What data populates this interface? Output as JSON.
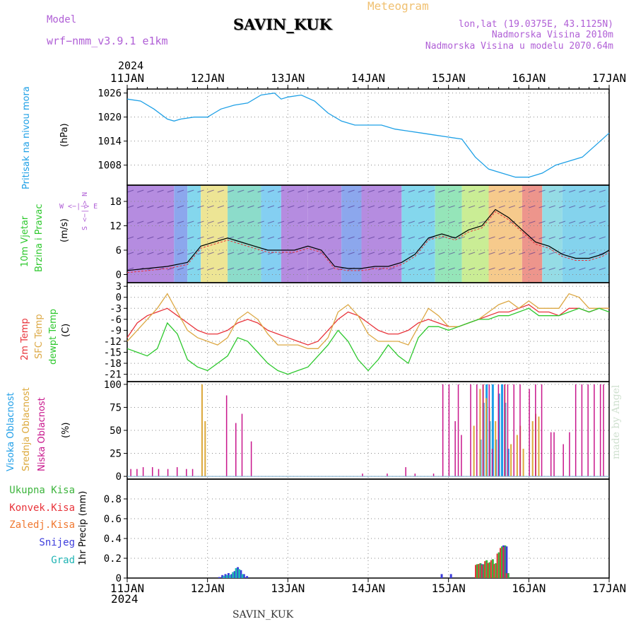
{
  "header": {
    "model_label": "Model",
    "model_name": "wrf−nmm_v3.9.1  e1km",
    "station": "SAVIN_KUK",
    "product": "Meteogram",
    "lonlat": "lon,lat (19.0375E, 43.1125N)",
    "elevation": "Nadmorska Visina 2010m",
    "elevation_model": "Nadmorska Visina u modelu 2070.64m",
    "year": "2024",
    "footer_station": "SAVIN_KUK",
    "credit": "made by Angel"
  },
  "time_axis": {
    "labels": [
      "11JAN",
      "12JAN",
      "13JAN",
      "14JAN",
      "15JAN",
      "16JAN",
      "17JAN"
    ],
    "year": "2024"
  },
  "colors": {
    "pressure": "#1ea0e6",
    "temp2m": "#e8333a",
    "sfc_temp": "#dca844",
    "dewpoint": "#2dc82d",
    "cloud_high": "#1e9ee8",
    "cloud_mid": "#dca83a",
    "cloud_low": "#c8168c",
    "precip_total": "#3cb43c",
    "precip_conv": "#e8333a",
    "precip_frozen": "#f07830",
    "snow": "#3c3cdc",
    "graupel": "#20b4b4",
    "side_purple": "#b05fd6"
  },
  "panels": {
    "pressure": {
      "label": "Pritisak na nivou mora",
      "unit": "(hPa)"
    },
    "wind": {
      "label1": "10m Vjetar",
      "label2": "Brzina i Pravac",
      "unit": "(m/s)",
      "compass": "W <−|−> E",
      "compass_v": "S <−|−> N"
    },
    "temp": {
      "label1": "2m Temp",
      "label2": "SFC Temp",
      "label3": "dewpt Temp",
      "unit": "(C)"
    },
    "cloud": {
      "label1": "Visoka Oblacnost",
      "label2": "Srednja Oblacnost",
      "label3": "Niska Oblacnost",
      "unit": "(%)"
    },
    "precip": {
      "legend": [
        "Ukupna Kisa",
        "Konvek.Kisa",
        "Zaledj.Kisa",
        "Snijeg",
        "Grad"
      ],
      "unit": "1hr Precip (mm)"
    }
  },
  "chart_data": [
    {
      "type": "line",
      "title": "Pritisak na nivou mora",
      "ylabel": "(hPa)",
      "ylim": [
        1003,
        1027
      ],
      "yticks": [
        1008,
        1014,
        1020,
        1026
      ],
      "x_hours": [
        0,
        4,
        8,
        12,
        14,
        16,
        20,
        24,
        26,
        28,
        32,
        36,
        40,
        44,
        46,
        48,
        52,
        56,
        60,
        64,
        68,
        72,
        76,
        80,
        84,
        88,
        92,
        96,
        100,
        104,
        108,
        112,
        116,
        120,
        124,
        128,
        132,
        136,
        140,
        144
      ],
      "series": [
        {
          "values": [
            1024.5,
            1024,
            1022,
            1019.5,
            1019,
            1019.5,
            1020,
            1020,
            1021,
            1022,
            1023,
            1023.5,
            1025.5,
            1026,
            1024.5,
            1025,
            1025.5,
            1024,
            1021,
            1019,
            1018,
            1018,
            1018,
            1017,
            1016.5,
            1016,
            1015.5,
            1015,
            1014.5,
            1010,
            1007,
            1006,
            1005,
            1005,
            1006,
            1008,
            1009,
            1010,
            1013,
            1016
          ]
        }
      ],
      "grid": true
    },
    {
      "type": "line",
      "title": "10m Vjetar Brzina i Pravac",
      "ylabel": "(m/s)",
      "ylim": [
        -2,
        22
      ],
      "yticks": [
        0,
        6,
        12,
        18
      ],
      "x_hours": [
        0,
        6,
        12,
        18,
        22,
        26,
        30,
        34,
        38,
        42,
        46,
        50,
        54,
        58,
        62,
        66,
        70,
        74,
        78,
        82,
        86,
        90,
        94,
        98,
        102,
        106,
        110,
        114,
        118,
        122,
        126,
        130,
        134,
        138,
        142,
        144
      ],
      "series": [
        {
          "values": [
            1,
            1.5,
            2,
            3,
            7,
            8,
            9,
            8,
            7,
            6,
            6,
            6,
            7,
            6,
            2,
            1.5,
            1.5,
            2,
            2,
            3,
            5,
            9,
            10,
            9,
            11,
            12,
            16,
            14,
            11,
            8,
            7,
            5,
            4,
            4,
            5,
            6
          ]
        }
      ],
      "grid": true
    },
    {
      "type": "line",
      "title": "Temp",
      "ylabel": "(C)",
      "ylim": [
        -23,
        4
      ],
      "yticks": [
        -21,
        -18,
        -15,
        -12,
        -9,
        -6,
        -3,
        0,
        3
      ],
      "x_hours": [
        0,
        3,
        6,
        9,
        12,
        15,
        18,
        21,
        24,
        27,
        30,
        33,
        36,
        39,
        42,
        45,
        48,
        51,
        54,
        57,
        60,
        63,
        66,
        69,
        72,
        75,
        78,
        81,
        84,
        87,
        90,
        93,
        96,
        99,
        102,
        105,
        108,
        111,
        114,
        117,
        120,
        123,
        126,
        129,
        132,
        135,
        138,
        141,
        144
      ],
      "series": [
        {
          "name": "2m Temp",
          "values": [
            -11,
            -7,
            -5,
            -4,
            -3,
            -5,
            -7,
            -9,
            -10,
            -10,
            -9,
            -7,
            -6,
            -7,
            -9,
            -10,
            -11,
            -12,
            -13,
            -12,
            -9,
            -6,
            -4,
            -5,
            -7,
            -9,
            -10,
            -10,
            -9,
            -7,
            -6,
            -7,
            -8,
            -8,
            -7,
            -6,
            -5,
            -4,
            -4,
            -3,
            -2,
            -4,
            -4,
            -5,
            -3,
            -3,
            -4,
            -3,
            -3
          ]
        },
        {
          "name": "SFC Temp",
          "values": [
            -12,
            -9,
            -6,
            -3,
            1,
            -4,
            -9,
            -11,
            -12,
            -13,
            -11,
            -6,
            -4,
            -6,
            -10,
            -13,
            -13,
            -13,
            -14,
            -14,
            -11,
            -4,
            -2,
            -5,
            -10,
            -12,
            -12,
            -12,
            -13,
            -8,
            -3,
            -5,
            -8,
            -8,
            -7,
            -6,
            -4,
            -2,
            -1,
            -3,
            -1,
            -3,
            -3,
            -3,
            1,
            0,
            -3,
            -3,
            -3
          ]
        },
        {
          "name": "dewpt Temp",
          "values": [
            -14,
            -15,
            -16,
            -14,
            -7,
            -10,
            -17,
            -19,
            -20,
            -18,
            -16,
            -11,
            -12,
            -15,
            -18,
            -20,
            -21,
            -20,
            -19,
            -16,
            -13,
            -9,
            -12,
            -17,
            -20,
            -17,
            -13,
            -16,
            -18,
            -11,
            -8,
            -8,
            -9,
            -8,
            -7,
            -6,
            -6,
            -5,
            -5,
            -4,
            -3,
            -5,
            -5,
            -5,
            -4,
            -3,
            -4,
            -3,
            -4
          ]
        }
      ],
      "grid": true
    },
    {
      "type": "bar",
      "title": "Oblacnost",
      "ylabel": "(%)",
      "ylim": [
        -3,
        103
      ],
      "yticks": [
        0,
        25,
        50,
        75,
        100
      ],
      "series": [
        {
          "name": "Visoka Oblacnost",
          "bars": [
            [
              114,
              40
            ],
            [
              115,
              80
            ],
            [
              116,
              100
            ],
            [
              117,
              60
            ],
            [
              118,
              100
            ],
            [
              119,
              40
            ],
            [
              120,
              90
            ],
            [
              121,
              100
            ],
            [
              122,
              80
            ],
            [
              123,
              30
            ]
          ]
        },
        {
          "name": "Srednja Oblacnost",
          "bars": [
            [
              24,
              100
            ],
            [
              25,
              60
            ],
            [
              112,
              55
            ],
            [
              114,
              95
            ],
            [
              115,
              100
            ],
            [
              116,
              85
            ],
            [
              117,
              75
            ],
            [
              119,
              60
            ],
            [
              122,
              100
            ],
            [
              124,
              35
            ],
            [
              126,
              45
            ],
            [
              127,
              55
            ],
            [
              128,
              30
            ],
            [
              131,
              60
            ],
            [
              132,
              68
            ],
            [
              133,
              65
            ]
          ]
        },
        {
          "name": "Niska Oblacnost",
          "bars": [
            [
              1,
              8
            ],
            [
              3,
              8
            ],
            [
              5,
              10
            ],
            [
              8,
              10
            ],
            [
              10,
              8
            ],
            [
              13,
              8
            ],
            [
              16,
              10
            ],
            [
              19,
              8
            ],
            [
              21,
              8
            ],
            [
              32,
              88
            ],
            [
              35,
              58
            ],
            [
              37,
              68
            ],
            [
              40,
              38
            ],
            [
              76,
              3
            ],
            [
              84,
              3
            ],
            [
              90,
              10
            ],
            [
              93,
              3
            ],
            [
              99,
              3
            ],
            [
              102,
              100
            ],
            [
              104,
              100
            ],
            [
              106,
              60
            ],
            [
              107,
              100
            ],
            [
              108,
              45
            ],
            [
              111,
              100
            ],
            [
              113,
              100
            ],
            [
              115,
              100
            ],
            [
              117,
              100
            ],
            [
              118,
              30
            ],
            [
              120,
              100
            ],
            [
              122,
              100
            ],
            [
              123,
              100
            ],
            [
              125,
              100
            ],
            [
              127,
              100
            ],
            [
              130,
              95
            ],
            [
              132,
              100
            ],
            [
              134,
              100
            ],
            [
              137,
              48
            ],
            [
              138,
              48
            ],
            [
              141,
              35
            ],
            [
              143,
              48
            ],
            [
              145,
              100
            ],
            [
              147,
              100
            ],
            [
              149,
              100
            ],
            [
              151,
              100
            ],
            [
              153,
              100
            ],
            [
              154,
              100
            ]
          ]
        }
      ],
      "grid": true
    },
    {
      "type": "bar",
      "title": "1hr Precip",
      "ylabel": "1hr Precip (mm)",
      "ylim": [
        0,
        1.0
      ],
      "yticks": [
        0,
        0.2,
        0.4,
        0.6,
        0.8
      ],
      "series": [
        {
          "name": "Ukupna Kisa",
          "bars": [
            [
              113,
              0.14
            ],
            [
              114,
              0.15
            ],
            [
              115,
              0.14
            ],
            [
              116,
              0.18
            ],
            [
              117,
              0.16
            ],
            [
              118,
              0.19
            ],
            [
              119,
              0.15
            ],
            [
              120,
              0.26
            ],
            [
              121,
              0.32
            ],
            [
              122,
              0.33
            ],
            [
              123,
              0.05
            ]
          ]
        },
        {
          "name": "Snijeg",
          "bars": [
            [
              29,
              0.01
            ],
            [
              30,
              0.03
            ],
            [
              31,
              0.04
            ],
            [
              32,
              0.05
            ],
            [
              33,
              0.04
            ],
            [
              34,
              0.07
            ],
            [
              35,
              0.11
            ],
            [
              36,
              0.08
            ],
            [
              37,
              0.04
            ],
            [
              38,
              0.02
            ],
            [
              101,
              0.04
            ],
            [
              104,
              0.04
            ],
            [
              114,
              0.14
            ],
            [
              121,
              0.33
            ],
            [
              122,
              0.32
            ]
          ]
        },
        {
          "name": "Grad",
          "bars": [
            [
              30,
              0.02
            ],
            [
              31,
              0.03
            ],
            [
              32,
              0.03
            ],
            [
              33,
              0.06
            ],
            [
              34,
              0.1
            ],
            [
              35,
              0.09
            ],
            [
              36,
              0.04
            ]
          ]
        }
      ],
      "grid": true
    }
  ]
}
